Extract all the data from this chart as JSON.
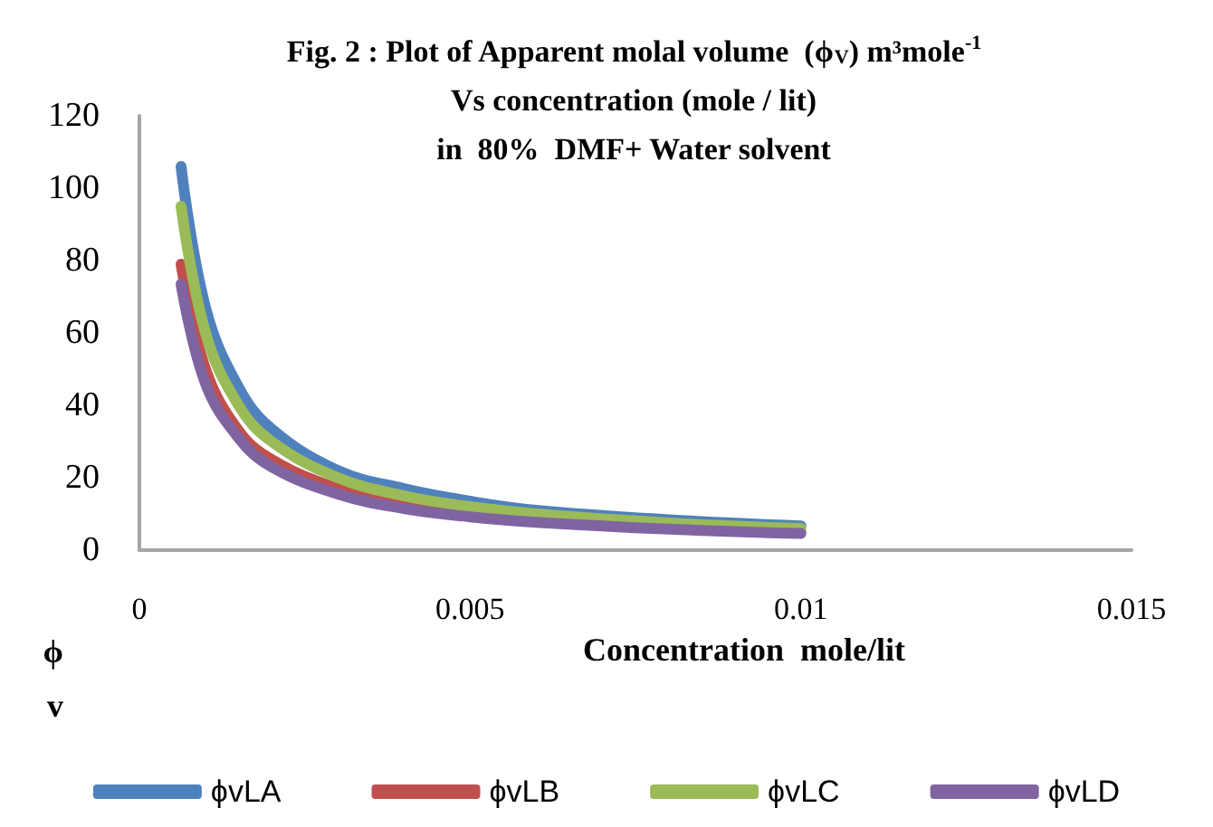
{
  "chart_data": {
    "type": "line",
    "title": "Fig. 2 : Plot of Apparent molal volume  (ϕ$_{V}$) m³mole$^{-1}$\nVs concentration (mole / lit)\nin  80%  DMF+ Water solvent",
    "xlabel": "Concentration  mole/lit",
    "ylabel": "ϕv",
    "x": [
      0.00063,
      0.001,
      0.0015,
      0.002,
      0.003,
      0.004,
      0.005,
      0.006,
      0.008,
      0.01
    ],
    "series": [
      {
        "name": "ϕvLA",
        "color": "#4f81bd",
        "values": [
          106,
          67,
          45,
          33.5,
          22,
          17,
          13.5,
          11,
          8.4,
          6.7
        ]
      },
      {
        "name": "ϕvLB",
        "color": "#c0504d",
        "values": [
          79,
          50,
          33,
          25,
          17,
          12.5,
          10,
          8.3,
          6.3,
          5
        ]
      },
      {
        "name": "ϕvLC",
        "color": "#9bbb59",
        "values": [
          95,
          60,
          40,
          30,
          20,
          15,
          12,
          10,
          7.5,
          6
        ]
      },
      {
        "name": "ϕvLD",
        "color": "#8064a2",
        "values": [
          73.5,
          46,
          31,
          23,
          15.5,
          11.5,
          9.2,
          7.7,
          5.8,
          4.6
        ]
      }
    ],
    "xlim": [
      0,
      0.015
    ],
    "xticks": [
      0,
      0.005,
      0.01,
      0.015
    ],
    "ylim": [
      0,
      120
    ],
    "yticks": [
      0,
      20,
      40,
      60,
      80,
      100,
      120
    ],
    "grid": false,
    "legend": "bottom",
    "marker": "none",
    "line_style": "solid"
  }
}
